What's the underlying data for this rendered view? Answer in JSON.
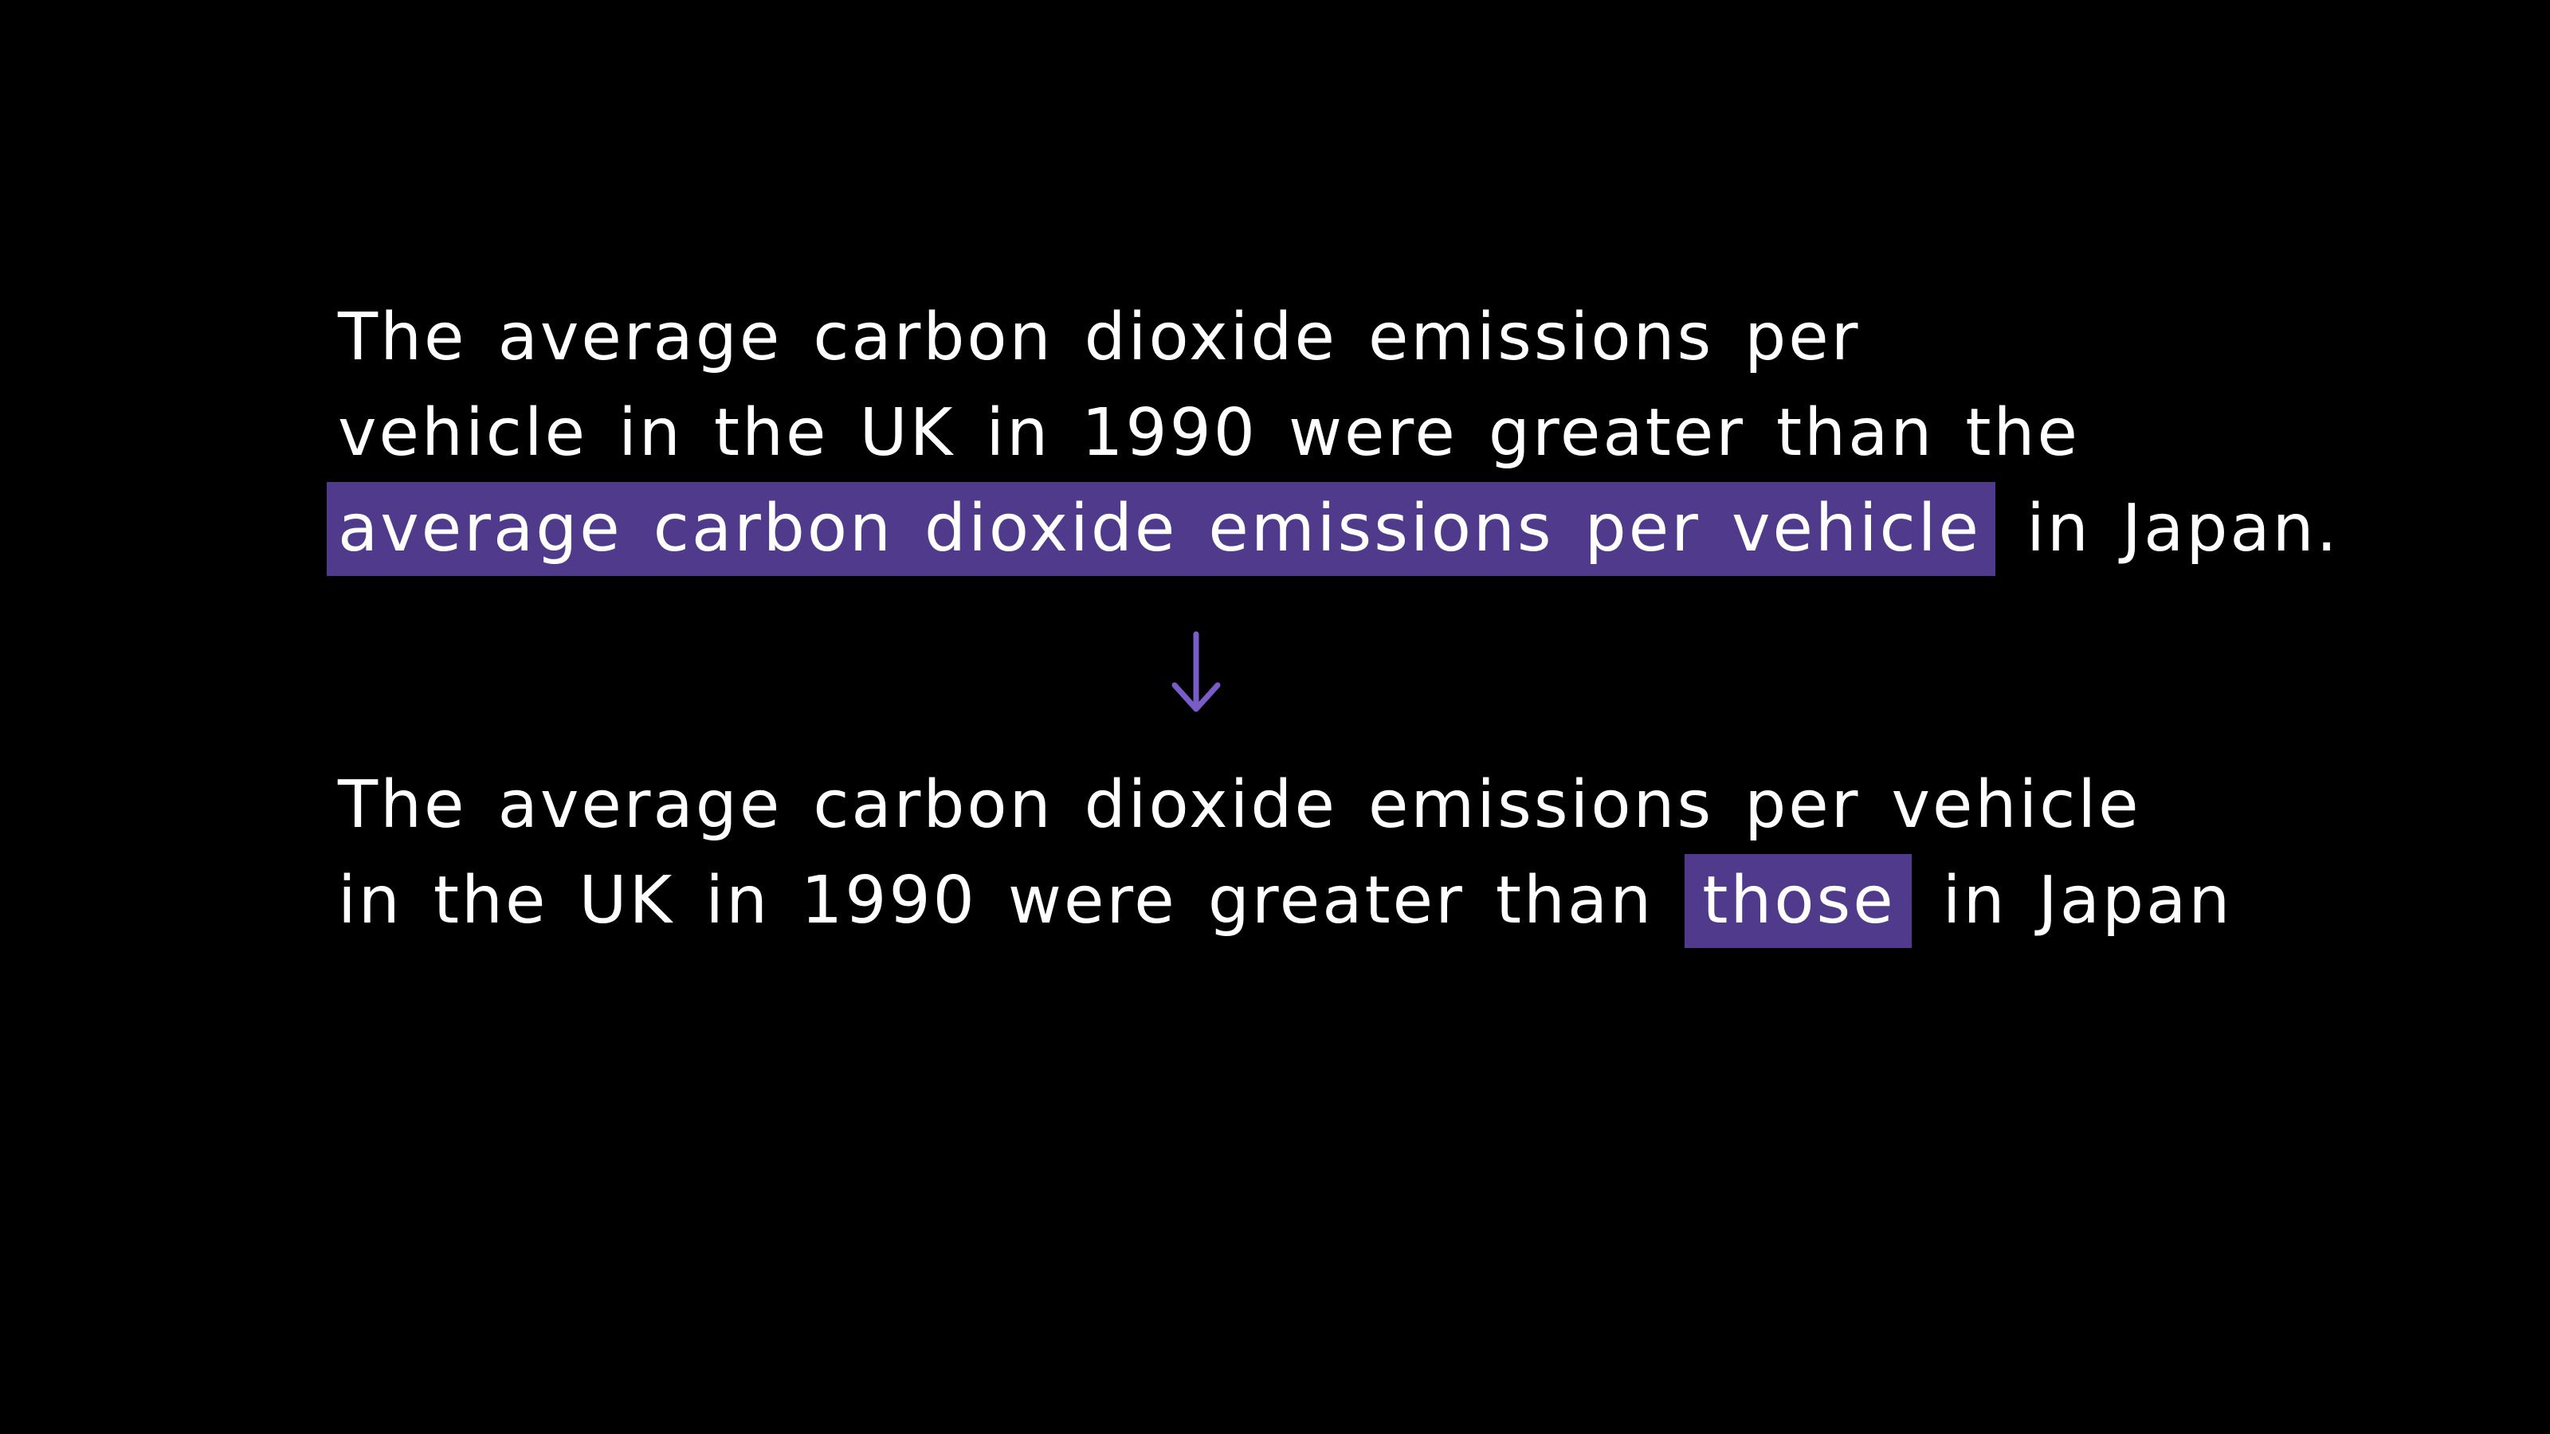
{
  "original": {
    "line1": "The average carbon dioxide emissions per",
    "line2": "vehicle in the UK in 1990 were greater than the",
    "line3_highlight": "average carbon dioxide emissions per vehicle",
    "line3_rest": " in Japan."
  },
  "revised": {
    "line1": "The average carbon dioxide emissions per vehicle",
    "line2_before": "in the UK in 1990 were greater than ",
    "line2_highlight": "those",
    "line2_after": " in Japan"
  },
  "colors": {
    "background": "#000000",
    "text": "#ffffff",
    "highlight": "#4f3a8c",
    "arrow": "#7a5cc9"
  },
  "icons": {
    "arrow": "down-arrow-icon"
  }
}
